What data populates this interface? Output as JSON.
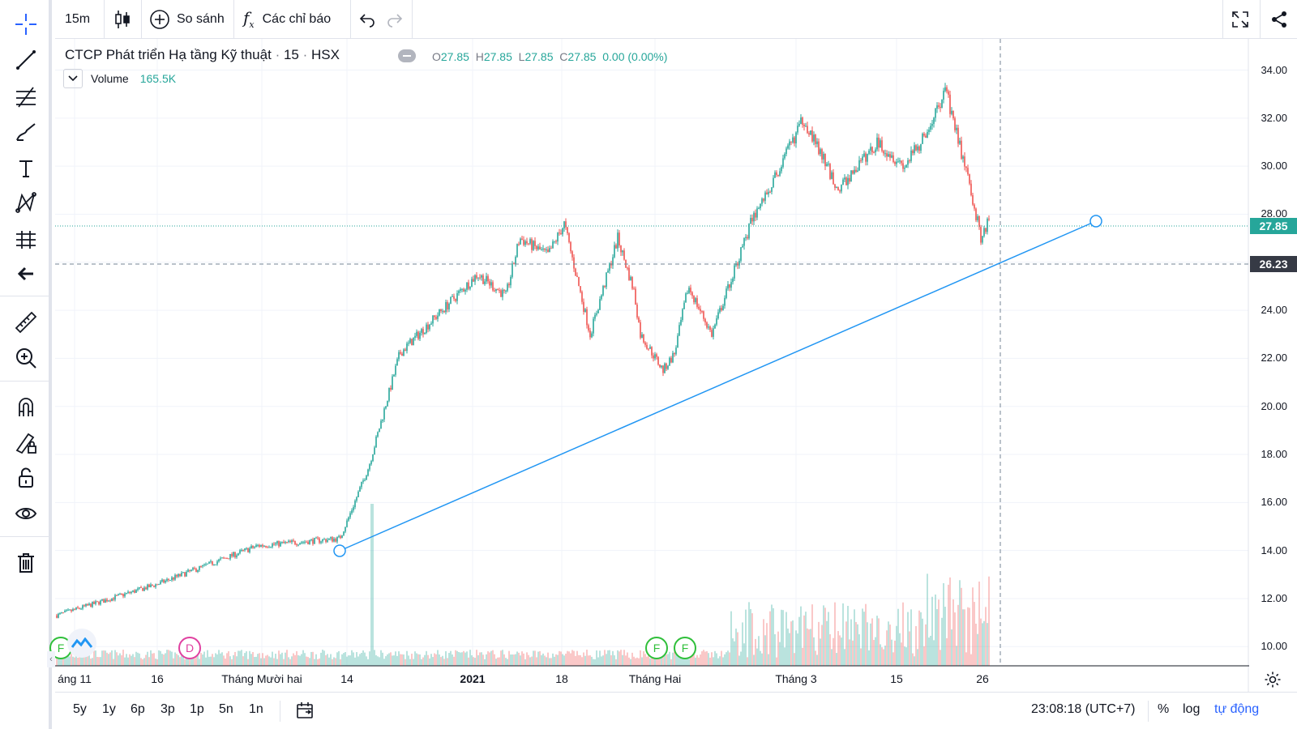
{
  "toolbar": {
    "interval": "15m",
    "compare_label": "So sánh",
    "indicators_label": "Các chỉ báo"
  },
  "legend": {
    "title": "CTCP Phát triển Hạ tầng Kỹ thuật",
    "interval": "15",
    "exchange": "HSX",
    "open_key": "O",
    "open": "27.85",
    "high_key": "H",
    "high": "27.85",
    "low_key": "L",
    "low": "27.85",
    "close_key": "C",
    "close": "27.85",
    "change": "0.00 (0.00%)",
    "volume_label": "Volume",
    "volume_value": "165.5K"
  },
  "price_axis": {
    "ticks": [
      "34.00",
      "32.00",
      "30.00",
      "28.00",
      "26.00",
      "24.00",
      "22.00",
      "20.00",
      "18.00",
      "16.00",
      "14.00",
      "12.00",
      "10.00"
    ],
    "last_price": "27.85",
    "crosshair_price": "26.23"
  },
  "time_axis": {
    "ticks": [
      "áng 11",
      "16",
      "Tháng Mười hai",
      "14",
      "2021",
      "18",
      "Tháng Hai",
      "Tháng 3",
      "15",
      "26"
    ]
  },
  "events": {
    "f": "F",
    "d": "D"
  },
  "bottom_bar": {
    "ranges": [
      "5y",
      "1y",
      "6p",
      "3p",
      "1p",
      "5n",
      "1n"
    ],
    "time": "23:08:18 (UTC+7)",
    "percent": "%",
    "log": "log",
    "auto": "tự động"
  },
  "colors": {
    "up": "#26a69a",
    "down": "#ef5350",
    "line": "#2196f3",
    "last_price": "#26a69a",
    "crosshair_label": "#363a45"
  },
  "chart_data": {
    "type": "candlestick",
    "symbol": "CTCP Phát triển Hạ tầng Kỹ thuật",
    "interval": "15",
    "ylim": [
      9.2,
      35.3
    ],
    "price_path": [
      [
        "áng 11",
        11.3
      ],
      [
        "16",
        12.6
      ],
      [
        "Tháng Mười hai",
        14.2
      ],
      [
        "14",
        14.5
      ],
      [
        "14",
        15.2
      ],
      [
        "14",
        17.5
      ],
      [
        "14",
        22.2
      ],
      [
        "2021",
        25.5
      ],
      [
        "2021",
        24.6
      ],
      [
        "18",
        27.0
      ],
      [
        "18",
        26.3
      ],
      [
        "18",
        27.6
      ],
      [
        "18",
        23.0
      ],
      [
        "18",
        27.0
      ],
      [
        "18",
        24.8
      ],
      [
        "Tháng Hai",
        23.0
      ],
      [
        "Tháng Hai",
        21.5
      ],
      [
        "Tháng Hai",
        22.2
      ],
      [
        "Tháng Hai",
        25.0
      ],
      [
        "Tháng Hai",
        23.0
      ],
      [
        "Tháng 3",
        27.8
      ],
      [
        "Tháng 3",
        29.5
      ],
      [
        "Tháng 3",
        32.0
      ],
      [
        "Tháng 3",
        29.0
      ],
      [
        "15",
        31.0
      ],
      [
        "15",
        30.0
      ],
      [
        "15",
        31.0
      ],
      [
        "15",
        33.1
      ],
      [
        "15",
        31.0
      ],
      [
        "26",
        28.5
      ],
      [
        "26",
        27.0
      ],
      [
        "26",
        27.85
      ]
    ],
    "trendline": {
      "from_price": 13.85,
      "to_price": 27.85
    },
    "last_price": 27.85,
    "crosshair_price": 26.23
  }
}
